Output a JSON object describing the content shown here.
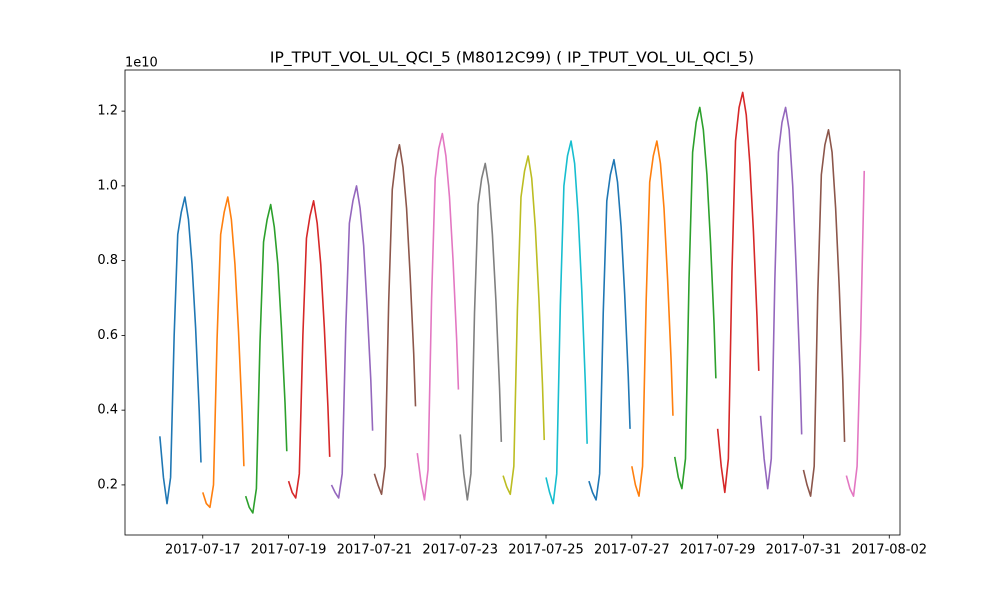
{
  "chart_data": {
    "type": "line",
    "title": "IP_TPUT_VOL_UL_QCI_5 (M8012C99) ( IP_TPUT_VOL_UL_QCI_5)",
    "y_offset_label": "1e10",
    "xlim": [
      "2017-07-15 04:30",
      "2017-08-02 06:00"
    ],
    "xticks": [
      "2017-07-17",
      "2017-07-19",
      "2017-07-21",
      "2017-07-23",
      "2017-07-25",
      "2017-07-27",
      "2017-07-29",
      "2017-07-31",
      "2017-08-02"
    ],
    "ylim": [
      0.066,
      1.31
    ],
    "yticks": [
      0.2,
      0.4,
      0.6,
      0.8,
      {
        "value": 1,
        "label": "1.0"
      },
      1.2
    ],
    "series": [
      {
        "color": "#1f77b4",
        "x": [
          "2017-07-16 00:00",
          "2017-07-16 02:00",
          "2017-07-16 04:00",
          "2017-07-16 06:00",
          "2017-07-16 08:00",
          "2017-07-16 10:00",
          "2017-07-16 12:00",
          "2017-07-16 14:00",
          "2017-07-16 16:00",
          "2017-07-16 18:00",
          "2017-07-16 20:00",
          "2017-07-16 22:00",
          "2017-07-16 23:00"
        ],
        "values": [
          0.33,
          0.22,
          0.15,
          0.22,
          0.6,
          0.87,
          0.93,
          0.97,
          0.91,
          0.79,
          0.62,
          0.4,
          0.26
        ]
      },
      {
        "color": "#ff7f0e",
        "x": [
          "2017-07-17 00:00",
          "2017-07-17 02:00",
          "2017-07-17 04:00",
          "2017-07-17 06:00",
          "2017-07-17 08:00",
          "2017-07-17 10:00",
          "2017-07-17 12:00",
          "2017-07-17 14:00",
          "2017-07-17 16:00",
          "2017-07-17 18:00",
          "2017-07-17 20:00",
          "2017-07-17 22:00",
          "2017-07-17 23:00"
        ],
        "values": [
          0.18,
          0.15,
          0.14,
          0.2,
          0.59,
          0.87,
          0.93,
          0.97,
          0.91,
          0.79,
          0.61,
          0.39,
          0.25
        ]
      },
      {
        "color": "#2ca02c",
        "x": [
          "2017-07-18 00:00",
          "2017-07-18 02:00",
          "2017-07-18 04:00",
          "2017-07-18 06:00",
          "2017-07-18 08:00",
          "2017-07-18 10:00",
          "2017-07-18 12:00",
          "2017-07-18 14:00",
          "2017-07-18 16:00",
          "2017-07-18 18:00",
          "2017-07-18 20:00",
          "2017-07-18 22:00",
          "2017-07-18 23:00"
        ],
        "values": [
          0.17,
          0.14,
          0.125,
          0.19,
          0.58,
          0.85,
          0.91,
          0.95,
          0.89,
          0.79,
          0.62,
          0.42,
          0.29
        ]
      },
      {
        "color": "#d62728",
        "x": [
          "2017-07-19 00:00",
          "2017-07-19 02:00",
          "2017-07-19 04:00",
          "2017-07-19 06:00",
          "2017-07-19 08:00",
          "2017-07-19 10:00",
          "2017-07-19 12:00",
          "2017-07-19 14:00",
          "2017-07-19 16:00",
          "2017-07-19 18:00",
          "2017-07-19 20:00",
          "2017-07-19 22:00",
          "2017-07-19 23:00"
        ],
        "values": [
          0.21,
          0.18,
          0.165,
          0.23,
          0.6,
          0.86,
          0.92,
          0.96,
          0.9,
          0.79,
          0.62,
          0.41,
          0.275
        ]
      },
      {
        "color": "#9467bd",
        "x": [
          "2017-07-20 00:00",
          "2017-07-20 02:00",
          "2017-07-20 04:00",
          "2017-07-20 06:00",
          "2017-07-20 08:00",
          "2017-07-20 10:00",
          "2017-07-20 12:00",
          "2017-07-20 14:00",
          "2017-07-20 16:00",
          "2017-07-20 18:00",
          "2017-07-20 20:00",
          "2017-07-20 22:00",
          "2017-07-20 23:00"
        ],
        "values": [
          0.2,
          0.18,
          0.165,
          0.23,
          0.62,
          0.9,
          0.96,
          1.0,
          0.94,
          0.84,
          0.67,
          0.48,
          0.345
        ]
      },
      {
        "color": "#8c564b",
        "x": [
          "2017-07-21 00:00",
          "2017-07-21 02:00",
          "2017-07-21 04:00",
          "2017-07-21 06:00",
          "2017-07-21 08:00",
          "2017-07-21 10:00",
          "2017-07-21 12:00",
          "2017-07-21 14:00",
          "2017-07-21 16:00",
          "2017-07-21 18:00",
          "2017-07-21 20:00",
          "2017-07-21 22:00",
          "2017-07-21 23:00"
        ],
        "values": [
          0.23,
          0.2,
          0.175,
          0.25,
          0.69,
          0.99,
          1.07,
          1.11,
          1.05,
          0.94,
          0.76,
          0.55,
          0.41
        ]
      },
      {
        "color": "#e377c2",
        "x": [
          "2017-07-22 00:00",
          "2017-07-22 02:00",
          "2017-07-22 04:00",
          "2017-07-22 06:00",
          "2017-07-22 08:00",
          "2017-07-22 10:00",
          "2017-07-22 12:00",
          "2017-07-22 14:00",
          "2017-07-22 16:00",
          "2017-07-22 18:00",
          "2017-07-22 20:00",
          "2017-07-22 22:00",
          "2017-07-22 23:00"
        ],
        "values": [
          0.285,
          0.21,
          0.16,
          0.24,
          0.7,
          1.02,
          1.1,
          1.14,
          1.08,
          0.97,
          0.8,
          0.59,
          0.455
        ]
      },
      {
        "color": "#7f7f7f",
        "x": [
          "2017-07-23 00:00",
          "2017-07-23 02:00",
          "2017-07-23 04:00",
          "2017-07-23 06:00",
          "2017-07-23 08:00",
          "2017-07-23 10:00",
          "2017-07-23 12:00",
          "2017-07-23 14:00",
          "2017-07-23 16:00",
          "2017-07-23 18:00",
          "2017-07-23 20:00",
          "2017-07-23 22:00",
          "2017-07-23 23:00"
        ],
        "values": [
          0.335,
          0.23,
          0.16,
          0.23,
          0.66,
          0.95,
          1.02,
          1.06,
          1.0,
          0.87,
          0.69,
          0.46,
          0.315
        ]
      },
      {
        "color": "#bcbd22",
        "x": [
          "2017-07-24 00:00",
          "2017-07-24 02:00",
          "2017-07-24 04:00",
          "2017-07-24 06:00",
          "2017-07-24 08:00",
          "2017-07-24 10:00",
          "2017-07-24 12:00",
          "2017-07-24 14:00",
          "2017-07-24 16:00",
          "2017-07-24 18:00",
          "2017-07-24 20:00",
          "2017-07-24 22:00",
          "2017-07-24 23:00"
        ],
        "values": [
          0.225,
          0.195,
          0.175,
          0.25,
          0.67,
          0.97,
          1.04,
          1.08,
          1.02,
          0.89,
          0.7,
          0.47,
          0.32
        ]
      },
      {
        "color": "#17becf",
        "x": [
          "2017-07-25 00:00",
          "2017-07-25 02:00",
          "2017-07-25 04:00",
          "2017-07-25 06:00",
          "2017-07-25 08:00",
          "2017-07-25 10:00",
          "2017-07-25 12:00",
          "2017-07-25 14:00",
          "2017-07-25 16:00",
          "2017-07-25 18:00",
          "2017-07-25 20:00",
          "2017-07-25 22:00",
          "2017-07-25 23:00"
        ],
        "values": [
          0.22,
          0.18,
          0.15,
          0.23,
          0.68,
          1.0,
          1.08,
          1.12,
          1.06,
          0.92,
          0.72,
          0.47,
          0.31
        ]
      },
      {
        "color": "#1f77b4",
        "x": [
          "2017-07-26 00:00",
          "2017-07-26 02:00",
          "2017-07-26 04:00",
          "2017-07-26 06:00",
          "2017-07-26 08:00",
          "2017-07-26 10:00",
          "2017-07-26 12:00",
          "2017-07-26 14:00",
          "2017-07-26 16:00",
          "2017-07-26 18:00",
          "2017-07-26 20:00",
          "2017-07-26 22:00",
          "2017-07-26 23:00"
        ],
        "values": [
          0.21,
          0.18,
          0.16,
          0.23,
          0.66,
          0.96,
          1.03,
          1.07,
          1.01,
          0.89,
          0.71,
          0.49,
          0.35
        ]
      },
      {
        "color": "#ff7f0e",
        "x": [
          "2017-07-27 00:00",
          "2017-07-27 02:00",
          "2017-07-27 04:00",
          "2017-07-27 06:00",
          "2017-07-27 08:00",
          "2017-07-27 10:00",
          "2017-07-27 12:00",
          "2017-07-27 14:00",
          "2017-07-27 16:00",
          "2017-07-27 18:00",
          "2017-07-27 20:00",
          "2017-07-27 22:00",
          "2017-07-27 23:00"
        ],
        "values": [
          0.25,
          0.2,
          0.17,
          0.25,
          0.69,
          1.01,
          1.08,
          1.12,
          1.06,
          0.94,
          0.75,
          0.53,
          0.385
        ]
      },
      {
        "color": "#2ca02c",
        "x": [
          "2017-07-28 00:00",
          "2017-07-28 02:00",
          "2017-07-28 04:00",
          "2017-07-28 06:00",
          "2017-07-28 08:00",
          "2017-07-28 10:00",
          "2017-07-28 12:00",
          "2017-07-28 14:00",
          "2017-07-28 16:00",
          "2017-07-28 18:00",
          "2017-07-28 20:00",
          "2017-07-28 22:00",
          "2017-07-28 23:00"
        ],
        "values": [
          0.275,
          0.22,
          0.19,
          0.27,
          0.75,
          1.09,
          1.17,
          1.21,
          1.15,
          1.03,
          0.85,
          0.63,
          0.485
        ]
      },
      {
        "color": "#d62728",
        "x": [
          "2017-07-29 00:00",
          "2017-07-29 02:00",
          "2017-07-29 04:00",
          "2017-07-29 06:00",
          "2017-07-29 08:00",
          "2017-07-29 10:00",
          "2017-07-29 12:00",
          "2017-07-29 14:00",
          "2017-07-29 16:00",
          "2017-07-29 18:00",
          "2017-07-29 20:00",
          "2017-07-29 22:00",
          "2017-07-29 23:00"
        ],
        "values": [
          0.35,
          0.25,
          0.18,
          0.27,
          0.77,
          1.12,
          1.21,
          1.25,
          1.19,
          1.06,
          0.88,
          0.65,
          0.505
        ]
      },
      {
        "color": "#9467bd",
        "x": [
          "2017-07-30 00:00",
          "2017-07-30 02:00",
          "2017-07-30 04:00",
          "2017-07-30 06:00",
          "2017-07-30 08:00",
          "2017-07-30 10:00",
          "2017-07-30 12:00",
          "2017-07-30 14:00",
          "2017-07-30 16:00",
          "2017-07-30 18:00",
          "2017-07-30 20:00",
          "2017-07-30 22:00",
          "2017-07-30 23:00"
        ],
        "values": [
          0.385,
          0.27,
          0.19,
          0.27,
          0.75,
          1.09,
          1.17,
          1.21,
          1.15,
          1.0,
          0.77,
          0.51,
          0.335
        ]
      },
      {
        "color": "#8c564b",
        "x": [
          "2017-07-31 00:00",
          "2017-07-31 02:00",
          "2017-07-31 04:00",
          "2017-07-31 06:00",
          "2017-07-31 08:00",
          "2017-07-31 10:00",
          "2017-07-31 12:00",
          "2017-07-31 14:00",
          "2017-07-31 16:00",
          "2017-07-31 18:00",
          "2017-07-31 20:00",
          "2017-07-31 22:00",
          "2017-07-31 23:00"
        ],
        "values": [
          0.24,
          0.2,
          0.17,
          0.25,
          0.71,
          1.03,
          1.11,
          1.15,
          1.09,
          0.94,
          0.73,
          0.48,
          0.315
        ]
      },
      {
        "color": "#e377c2",
        "x": [
          "2017-08-01 00:00",
          "2017-08-01 02:00",
          "2017-08-01 04:00",
          "2017-08-01 06:00",
          "2017-08-01 08:00",
          "2017-08-01 10:00"
        ],
        "values": [
          0.225,
          0.19,
          0.17,
          0.25,
          0.6,
          1.04
        ]
      }
    ]
  }
}
